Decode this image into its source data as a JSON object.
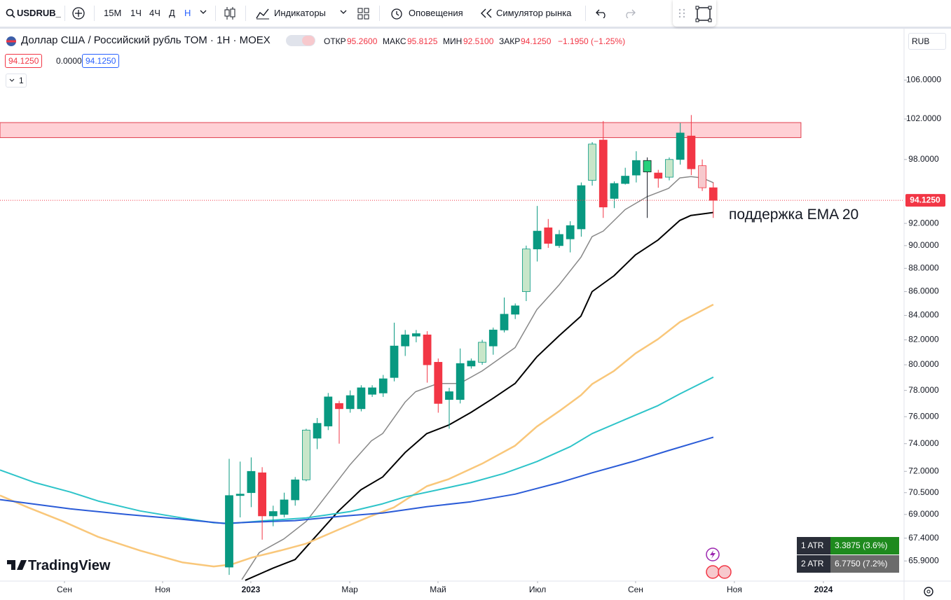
{
  "toolbar": {
    "symbol": "USDRUB_",
    "intervals": [
      "15M",
      "1Ч",
      "4Ч",
      "Д",
      "Н"
    ],
    "indicators": "Индикаторы",
    "alerts": "Оповещения",
    "replay": "Симулятор рынка"
  },
  "legend": {
    "title": "Доллар США / Российский рубль TOM · 1Н · MOEX",
    "open_label": "ОТКР",
    "open": "95.2600",
    "high_label": "МАКС",
    "high": "95.8125",
    "low_label": "МИН",
    "low": "92.5100",
    "close_label": "ЗАКР",
    "close": "94.1250",
    "change": "−1.1950 (−1.25%)"
  },
  "price_boxes": [
    "94.1250",
    "0.0000",
    "94.1250"
  ],
  "indicators_count": "1",
  "currency": "RUB",
  "chart_data": {
    "type": "candlestick",
    "log_scale": true,
    "grid": false,
    "xlim": [
      -20.83,
      61.34
    ],
    "ylim": [
      64.6,
      111.6
    ],
    "xticks": [
      {
        "value": -14.97,
        "label": "Сен"
      },
      {
        "value": -6.05,
        "label": "Ноя"
      },
      {
        "value": 1.97,
        "label": "2023"
      },
      {
        "value": 10.96,
        "label": "Мар"
      },
      {
        "value": 18.98,
        "label": "Май"
      },
      {
        "value": 28.03,
        "label": "Июл"
      },
      {
        "value": 36.94,
        "label": "Сен"
      },
      {
        "value": 45.92,
        "label": "Ноя"
      },
      {
        "value": 54.01,
        "label": "2024"
      }
    ],
    "yticks": [
      {
        "value": 106,
        "label": "106.0000"
      },
      {
        "value": 102,
        "label": "102.0000"
      },
      {
        "value": 98,
        "label": "98.0000"
      },
      {
        "value": 92,
        "label": "92.0000"
      },
      {
        "value": 90,
        "label": "90.0000"
      },
      {
        "value": 88,
        "label": "88.0000"
      },
      {
        "value": 86,
        "label": "86.0000"
      },
      {
        "value": 84,
        "label": "84.0000"
      },
      {
        "value": 82,
        "label": "82.0000"
      },
      {
        "value": 80,
        "label": "80.0000"
      },
      {
        "value": 78,
        "label": "78.0000"
      },
      {
        "value": 76,
        "label": "76.0000"
      },
      {
        "value": 74,
        "label": "74.0000"
      },
      {
        "value": 72,
        "label": "72.0000"
      },
      {
        "value": 70.5,
        "label": "70.5000"
      },
      {
        "value": 69,
        "label": "69.0000"
      },
      {
        "value": 67.4,
        "label": "67.4000"
      },
      {
        "value": 65.9,
        "label": "65.9000"
      }
    ],
    "candles": {
      "x": [
        0,
        1,
        2,
        3,
        4,
        5,
        6,
        7,
        8,
        9,
        10,
        11,
        12,
        13,
        14,
        15,
        16,
        17,
        18,
        19,
        20,
        21,
        22,
        23,
        24,
        25,
        26,
        27,
        28,
        29,
        30,
        31,
        32,
        33,
        34,
        35,
        36,
        37,
        38,
        39,
        40,
        41,
        42,
        43,
        44
      ],
      "open": [
        65.5,
        70.3,
        70.5,
        71.9,
        68.9,
        69.0,
        70.0,
        71.4,
        74.4,
        75.3,
        77.0,
        76.6,
        76.6,
        77.7,
        77.8,
        79.0,
        81.5,
        82.3,
        82.4,
        80.2,
        77.3,
        77.3,
        79.9,
        80.2,
        81.5,
        82.8,
        84.1,
        86.0,
        89.7,
        91.6,
        90.0,
        90.6,
        91.5,
        96.0,
        99.9,
        94.3,
        95.7,
        96.5,
        96.8,
        96.7,
        96.3,
        98.0,
        100.3,
        97.4,
        95.3
      ],
      "high": [
        72.9,
        72.7,
        73.0,
        72.3,
        69.6,
        70.5,
        71.6,
        75.1,
        75.9,
        77.8,
        77.2,
        78.0,
        78.4,
        78.4,
        79.2,
        83.4,
        82.8,
        82.8,
        82.7,
        80.5,
        78.2,
        81.3,
        80.5,
        82.0,
        83.0,
        85.5,
        85.0,
        90.0,
        93.6,
        92.4,
        91.4,
        92.2,
        95.8,
        99.7,
        101.8,
        95.9,
        97.2,
        98.8,
        98.2,
        97.0,
        98.2,
        101.6,
        102.4,
        98.0,
        95.8
      ],
      "low": [
        65.0,
        68.8,
        69.5,
        67.3,
        68.2,
        68.8,
        69.6,
        71.3,
        73.6,
        75.0,
        74.0,
        76.3,
        76.4,
        77.5,
        77.5,
        78.7,
        80.7,
        81.8,
        78.6,
        76.3,
        75.1,
        77.0,
        79.7,
        80.0,
        80.8,
        82.6,
        83.7,
        85.2,
        88.6,
        89.8,
        89.8,
        89.4,
        90.8,
        95.5,
        92.5,
        93.4,
        95.6,
        95.8,
        92.5,
        95.3,
        96.0,
        97.5,
        96.5,
        95.0,
        92.5
      ],
      "close": [
        70.3,
        70.4,
        72.0,
        68.9,
        69.2,
        70.0,
        71.4,
        75.0,
        75.5,
        77.5,
        76.6,
        77.6,
        78.2,
        78.2,
        78.9,
        81.5,
        82.4,
        82.5,
        80.0,
        77.0,
        77.9,
        80.1,
        80.3,
        81.8,
        82.8,
        84.1,
        84.8,
        89.7,
        91.3,
        90.2,
        91.0,
        91.8,
        95.5,
        99.5,
        93.5,
        95.7,
        96.4,
        97.9,
        97.9,
        96.2,
        98.0,
        100.6,
        97.1,
        95.3,
        94.125
      ],
      "colors": [
        "#089981",
        "#089981",
        "#089981",
        "#f23645",
        "#089981",
        "#089981",
        "#089981",
        "#c8e6c9",
        "#089981",
        "#089981",
        "#f23645",
        "#089981",
        "#089981",
        "#089981",
        "#089981",
        "#089981",
        "#089981",
        "#089981",
        "#f23645",
        "#f23645",
        "#089981",
        "#089981",
        "#089981",
        "#c8e6c9",
        "#089981",
        "#089981",
        "#089981",
        "#c8e6c9",
        "#089981",
        "#f23645",
        "#089981",
        "#089981",
        "#089981",
        "#c8e6c9",
        "#f23645",
        "#089981",
        "#089981",
        "#089981",
        "#26d07c",
        "#f23645",
        "#c8e6c9",
        "#089981",
        "#f23645",
        "#f7c9cd",
        "#f23645"
      ],
      "wick_colors": [
        "#089981",
        "#089981",
        "#089981",
        "#f23645",
        "#089981",
        "#089981",
        "#089981",
        "#089981",
        "#089981",
        "#089981",
        "#f23645",
        "#089981",
        "#089981",
        "#089981",
        "#089981",
        "#089981",
        "#089981",
        "#089981",
        "#f23645",
        "#f23645",
        "#089981",
        "#089981",
        "#089981",
        "#089981",
        "#089981",
        "#089981",
        "#089981",
        "#089981",
        "#089981",
        "#f23645",
        "#089981",
        "#089981",
        "#089981",
        "#089981",
        "#f23645",
        "#089981",
        "#089981",
        "#089981",
        "#131722",
        "#f23645",
        "#089981",
        "#089981",
        "#f23645",
        "#f23645",
        "#f23645"
      ]
    },
    "lines": [
      {
        "color": "#888888",
        "width": 1.5,
        "x": [
          1.15,
          2.74,
          4.97,
          7.01,
          8.98,
          10.96,
          12.93,
          13.95,
          15.99,
          16.94,
          18.98,
          20.96,
          22.99,
          25.99,
          27.96,
          30.0,
          31.97,
          32.99,
          34.01,
          35.99,
          37.96,
          39.94,
          40.96,
          41.97,
          42.99,
          44.01
        ],
        "values": [
          64.7,
          66.45,
          67.35,
          68.53,
          70.45,
          72.45,
          74.21,
          74.74,
          77.1,
          77.9,
          78.54,
          78.54,
          79.51,
          81.37,
          84.48,
          86.59,
          88.97,
          90.81,
          91.31,
          93.26,
          94.45,
          95.24,
          96.23,
          96.36,
          96.23,
          95.77
        ]
      },
      {
        "color": "#000000",
        "width": 2,
        "x": [
          1.46,
          4.01,
          5.99,
          7.96,
          9.94,
          11.97,
          13.95,
          15.99,
          17.96,
          19.94,
          21.97,
          23.95,
          25.99,
          27.96,
          30.0,
          31.97,
          32.99,
          34.97,
          36.94,
          38.98,
          40.96,
          41.97,
          44.01
        ],
        "values": [
          64.65,
          65.44,
          65.99,
          67.59,
          69.24,
          70.7,
          71.6,
          73.35,
          74.74,
          75.37,
          76.32,
          77.37,
          78.54,
          80.63,
          82.34,
          83.94,
          86.0,
          87.35,
          89.19,
          90.5,
          92.27,
          92.73,
          93.0
        ]
      },
      {
        "color": "#f9c77a",
        "width": 2.5,
        "x": [
          -20.83,
          -18.28,
          -15.1,
          -11.91,
          -8.09,
          -4.27,
          -1.4,
          0.19,
          2.1,
          4.65,
          7.01,
          9.94,
          12.93,
          14.97,
          17.96,
          19.94,
          22.99,
          25.99,
          27.96,
          30.0,
          31.97,
          32.99,
          34.97,
          36.94,
          38.98,
          40.96,
          42.99,
          44.01
        ],
        "values": [
          70.31,
          69.48,
          68.53,
          67.49,
          66.58,
          65.81,
          65.54,
          65.67,
          66.13,
          66.58,
          67.04,
          67.97,
          68.9,
          69.48,
          70.95,
          71.45,
          72.55,
          73.85,
          75.26,
          76.42,
          77.63,
          78.49,
          79.51,
          80.91,
          82.06,
          83.45,
          84.42,
          84.91
        ]
      },
      {
        "color": "#2ec4c9",
        "width": 2,
        "x": [
          -20.83,
          -17.64,
          -14.46,
          -11.91,
          -8.09,
          -4.27,
          -1.4,
          0.19,
          3.38,
          7.01,
          10.96,
          13.95,
          15.99,
          18.98,
          21.97,
          24.97,
          27.96,
          31.02,
          32.99,
          35.99,
          38.98,
          40.96,
          44.01
        ],
        "values": [
          72.1,
          71.2,
          70.55,
          69.92,
          69.24,
          68.76,
          68.44,
          68.39,
          68.58,
          68.76,
          69.19,
          69.73,
          70.21,
          70.7,
          71.2,
          71.85,
          72.7,
          73.79,
          74.74,
          75.79,
          76.84,
          77.73,
          79.03
        ]
      },
      {
        "color": "#2a5bd7",
        "width": 2,
        "x": [
          -20.83,
          -14.46,
          -9.36,
          -4.27,
          -0.45,
          2.1,
          5.99,
          9.94,
          13.95,
          17.96,
          21.97,
          25.99,
          30.0,
          32.99,
          36.94,
          39.94,
          44.01
        ],
        "values": [
          70.02,
          69.38,
          69.0,
          68.67,
          68.39,
          68.48,
          68.58,
          68.86,
          69.1,
          69.53,
          69.87,
          70.4,
          71.2,
          71.9,
          72.76,
          73.5,
          74.47
        ]
      }
    ],
    "zone": {
      "x": [
        -20.83,
        51.97
      ],
      "y": [
        100.14,
        101.64
      ],
      "color": "#ffd0d5",
      "border": "#e0404f"
    },
    "last_price": {
      "value": 94.125,
      "label": "94.1250",
      "color": "#f23645"
    },
    "annotation": "поддержка EMA 20"
  },
  "atr": [
    {
      "label": "1 ATR",
      "value": "3.3875 (3.6%)",
      "color": "#1e8a1e"
    },
    {
      "label": "2 ATR",
      "value": "6.7750 (7.2%)",
      "color": "#6b6b6b"
    }
  ],
  "logo": "TradingView"
}
